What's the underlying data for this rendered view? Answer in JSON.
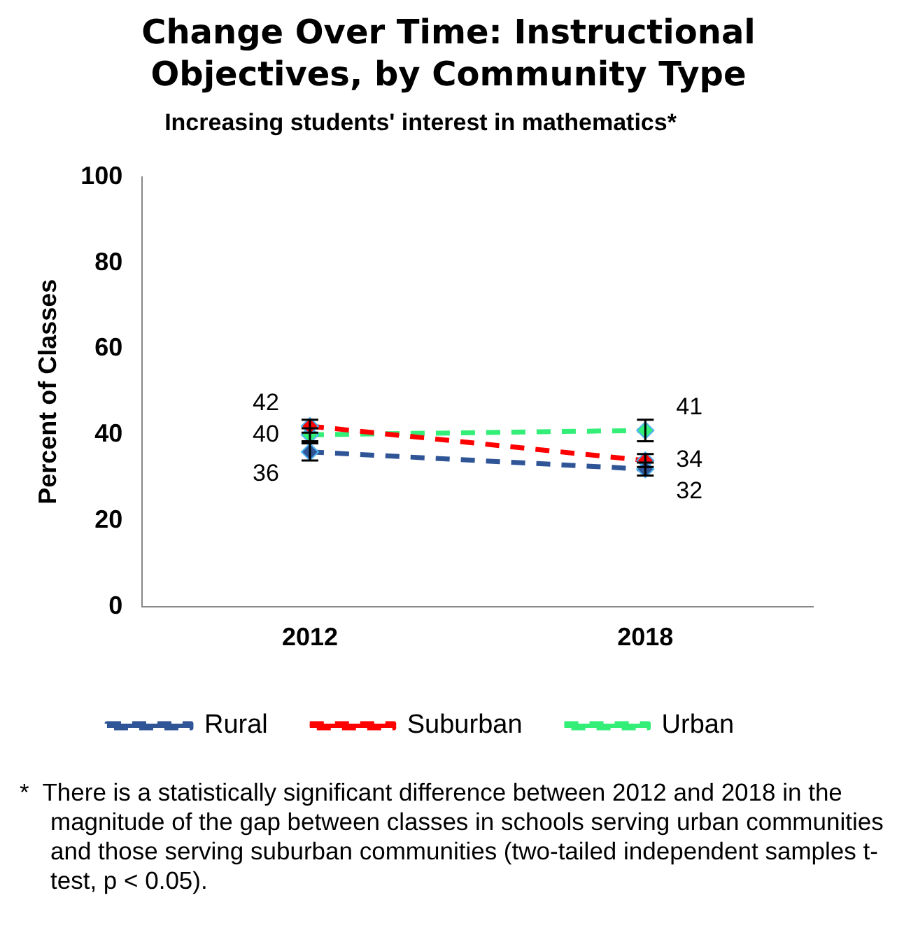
{
  "chart_data": {
    "type": "line",
    "title": "Change Over Time: Instructional Objectives, by Community Type",
    "subtitle": "Increasing students' interest in mathematics*",
    "ylabel": "Percent of Classes",
    "categories": [
      "2012",
      "2018"
    ],
    "series": [
      {
        "name": "Rural",
        "color": "#2f5597",
        "values": [
          36,
          32
        ],
        "errors": [
          2,
          1.5
        ]
      },
      {
        "name": "Suburban",
        "color": "#ff0000",
        "values": [
          42,
          34
        ],
        "errors": [
          1.5,
          1.5
        ]
      },
      {
        "name": "Urban",
        "color": "#33ee77",
        "values": [
          40,
          41
        ],
        "errors": [
          1.5,
          2.5
        ]
      }
    ],
    "ylim": [
      0,
      100
    ],
    "yticks": [
      0,
      20,
      40,
      60,
      80,
      100
    ],
    "grid": false,
    "legend": "bottom",
    "marker": "diamond",
    "line_style": "dashed",
    "data_labels": true,
    "annotations": [
      "*  There is a statistically significant difference between 2012 and 2018 in the magnitude of the gap between classes in schools serving urban communities and those serving suburban communities (two-tailed independent samples t-test, p < 0.05)."
    ]
  }
}
